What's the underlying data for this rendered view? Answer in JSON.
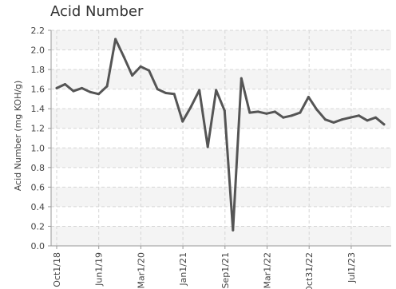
{
  "chart_data": {
    "type": "line",
    "title": "Acid Number",
    "ylabel": "Acid Number (mg KOH/g)",
    "xlabel": "",
    "ylim": [
      0,
      2.2
    ],
    "yticks": [
      "0.0",
      "0.2",
      "0.4",
      "0.6",
      "0.8",
      "1.0",
      "1.2",
      "1.4",
      "1.6",
      "1.8",
      "2.0",
      "2.2"
    ],
    "xticks": [
      "Oct1/18",
      "Jun1/19",
      "Mar1/20",
      "Jan1/21",
      "Sep1/21",
      "Mar1/22",
      "Oct31/22",
      "Jul1/23"
    ],
    "grid": true,
    "line_color": "#555555",
    "series": [
      {
        "values": [
          1.61,
          1.65,
          1.58,
          1.61,
          1.57,
          1.55,
          1.63,
          2.11,
          1.93,
          1.74,
          1.83,
          1.79,
          1.6,
          1.56,
          1.55,
          1.27,
          1.42,
          1.59,
          1.01,
          1.59,
          1.38,
          0.16,
          1.71,
          1.36,
          1.37,
          1.35,
          1.37,
          1.31,
          1.33,
          1.36,
          1.52,
          1.39,
          1.29,
          1.26,
          1.29,
          1.31,
          1.33,
          1.28,
          1.31,
          1.24
        ]
      }
    ]
  }
}
